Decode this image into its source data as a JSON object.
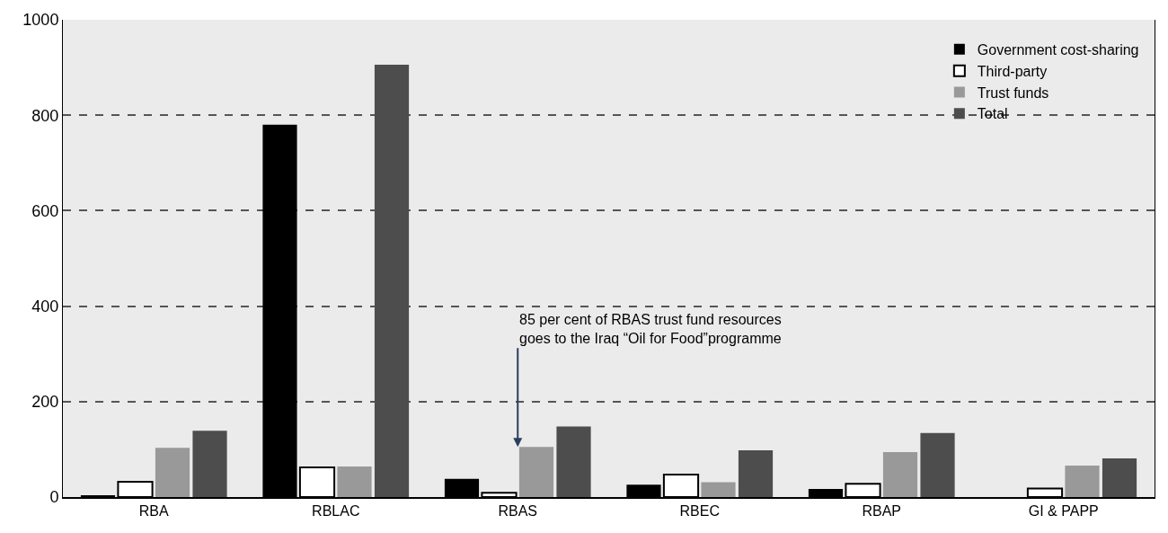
{
  "chart_data": {
    "type": "bar",
    "categories": [
      "RBA",
      "RBLAC",
      "RBAS",
      "RBEC",
      "RBAP",
      "GI & PAPP"
    ],
    "series": [
      {
        "name": "Government cost-sharing",
        "color": "#000000",
        "values": [
          3,
          780,
          38,
          26,
          17,
          0
        ]
      },
      {
        "name": "Third-party",
        "color": "#ffffff",
        "values": [
          32,
          62,
          9,
          47,
          28,
          18
        ]
      },
      {
        "name": "Trust funds",
        "color": "#999999",
        "values": [
          103,
          64,
          105,
          31,
          94,
          66
        ]
      },
      {
        "name": "Total",
        "color": "#4d4d4d",
        "values": [
          139,
          906,
          148,
          98,
          134,
          81
        ]
      }
    ],
    "ylim": [
      0,
      1000
    ],
    "yticks": [
      0,
      200,
      400,
      600,
      800,
      1000
    ],
    "grid": "y",
    "legend": "top right",
    "annotations": [
      {
        "text": "85 per cent of RBAS trust fund resources\ngoes to the Iraq “Oil for Food”programme",
        "x": "RBAS",
        "y": 105
      }
    ]
  }
}
